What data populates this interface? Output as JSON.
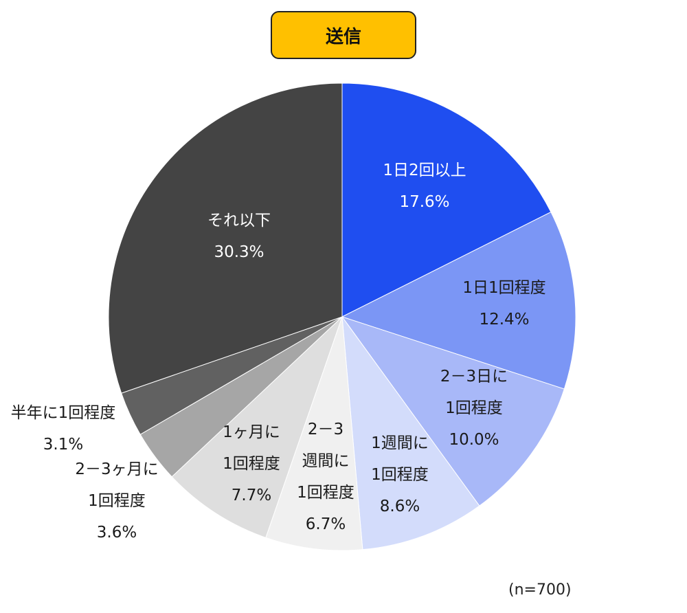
{
  "chart_data": {
    "type": "pie",
    "title": "送信",
    "note": "(n=700)",
    "start": "12 o'clock",
    "direction": "clockwise",
    "slices": [
      {
        "lines": [
          "1日2回以上"
        ],
        "value": 17.6,
        "value_label": "17.6%",
        "color": "#1f4ef0",
        "text_color": "#ffffff"
      },
      {
        "lines": [
          "1日1回程度"
        ],
        "value": 12.4,
        "value_label": "12.4%",
        "color": "#7b96f5",
        "text_color": "#1a1a1a"
      },
      {
        "lines": [
          "2－3日に",
          "1回程度"
        ],
        "value": 10.0,
        "value_label": "10.0%",
        "color": "#a8b8f8",
        "text_color": "#1a1a1a"
      },
      {
        "lines": [
          "1週間に",
          "1回程度"
        ],
        "value": 8.6,
        "value_label": "8.6%",
        "color": "#d3dcfb",
        "text_color": "#1a1a1a"
      },
      {
        "lines": [
          "2－3",
          "週間に",
          "1回程度"
        ],
        "value": 6.7,
        "value_label": "6.7%",
        "color": "#f0f0f0",
        "text_color": "#1a1a1a"
      },
      {
        "lines": [
          "1ヶ月に",
          "1回程度"
        ],
        "value": 7.7,
        "value_label": "7.7%",
        "color": "#dedede",
        "text_color": "#1a1a1a"
      },
      {
        "lines": [
          "2－3ヶ月に",
          "1回程度"
        ],
        "value": 3.6,
        "value_label": "3.6%",
        "color": "#a6a6a6",
        "text_color": "#1a1a1a"
      },
      {
        "lines": [
          "半年に1回程度"
        ],
        "value": 3.1,
        "value_label": "3.1%",
        "color": "#616161",
        "text_color": "#1a1a1a"
      },
      {
        "lines": [
          "それ以下"
        ],
        "value": 30.3,
        "value_label": "30.3%",
        "color": "#444444",
        "text_color": "#ffffff"
      }
    ]
  }
}
